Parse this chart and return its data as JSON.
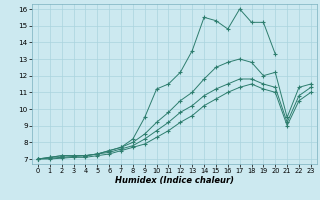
{
  "xlabel": "Humidex (Indice chaleur)",
  "ylabel": "",
  "bg_color": "#cce9f0",
  "grid_color": "#aad4de",
  "line_color": "#2d7d6e",
  "xlim": [
    -0.5,
    23.5
  ],
  "ylim": [
    6.7,
    16.3
  ],
  "xticks": [
    0,
    1,
    2,
    3,
    4,
    5,
    6,
    7,
    8,
    9,
    10,
    11,
    12,
    13,
    14,
    15,
    16,
    17,
    18,
    19,
    20,
    21,
    22,
    23
  ],
  "yticks": [
    7,
    8,
    9,
    10,
    11,
    12,
    13,
    14,
    15,
    16
  ],
  "series": [
    {
      "x": [
        0,
        1,
        2,
        3,
        4,
        5,
        6,
        7,
        8,
        9,
        10,
        11,
        12,
        13,
        14,
        15,
        16,
        17,
        18,
        19,
        20
      ],
      "y": [
        7.0,
        7.1,
        7.2,
        7.2,
        7.2,
        7.3,
        7.5,
        7.7,
        8.2,
        9.5,
        11.2,
        11.5,
        12.2,
        13.5,
        15.5,
        15.3,
        14.8,
        16.0,
        15.2,
        15.2,
        13.3
      ]
    },
    {
      "x": [
        0,
        1,
        2,
        3,
        4,
        5,
        6,
        7,
        8,
        9,
        10,
        11,
        12,
        13,
        14,
        15,
        16,
        17,
        18,
        19,
        20,
        21,
        22,
        23
      ],
      "y": [
        7.0,
        7.1,
        7.2,
        7.2,
        7.2,
        7.3,
        7.5,
        7.7,
        8.0,
        8.5,
        9.2,
        9.8,
        10.5,
        11.0,
        11.8,
        12.5,
        12.8,
        13.0,
        12.8,
        12.0,
        12.2,
        9.5,
        11.3,
        11.5
      ]
    },
    {
      "x": [
        0,
        1,
        2,
        3,
        4,
        5,
        6,
        7,
        8,
        9,
        10,
        11,
        12,
        13,
        14,
        15,
        16,
        17,
        18,
        19,
        20,
        21,
        22,
        23
      ],
      "y": [
        7.0,
        7.05,
        7.1,
        7.15,
        7.2,
        7.3,
        7.4,
        7.6,
        7.8,
        8.2,
        8.7,
        9.2,
        9.8,
        10.2,
        10.8,
        11.2,
        11.5,
        11.8,
        11.8,
        11.5,
        11.3,
        9.2,
        10.8,
        11.3
      ]
    },
    {
      "x": [
        0,
        1,
        2,
        3,
        4,
        5,
        6,
        7,
        8,
        9,
        10,
        11,
        12,
        13,
        14,
        15,
        16,
        17,
        18,
        19,
        20,
        21,
        22,
        23
      ],
      "y": [
        7.0,
        7.0,
        7.05,
        7.1,
        7.1,
        7.2,
        7.3,
        7.5,
        7.7,
        7.9,
        8.3,
        8.7,
        9.2,
        9.6,
        10.2,
        10.6,
        11.0,
        11.3,
        11.5,
        11.2,
        11.0,
        9.0,
        10.5,
        11.0
      ]
    }
  ]
}
